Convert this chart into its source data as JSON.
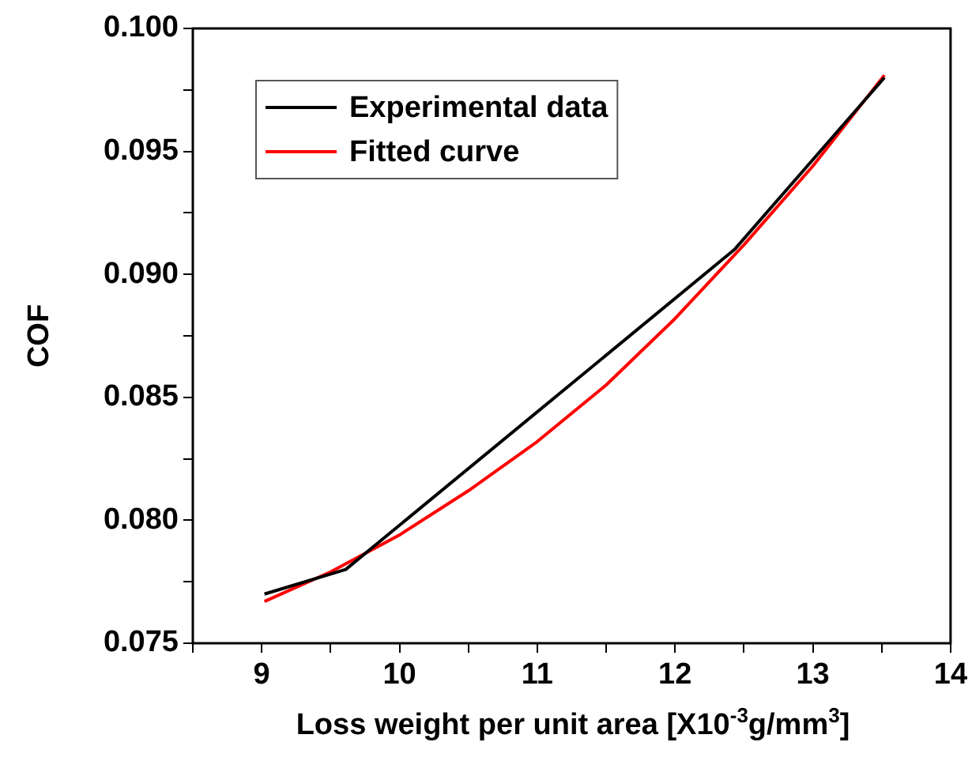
{
  "chart_data": {
    "type": "line",
    "xlabel": "Loss weight per unit area [X10$^{-3}$g/mm$^{3}$]",
    "ylabel": "COF",
    "xlim": [
      8.5,
      14
    ],
    "xticks": [
      {
        "value": 8.5,
        "label": null
      },
      9,
      {
        "value": 9.5,
        "label": null
      },
      10,
      {
        "value": 10.5,
        "label": null
      },
      11,
      {
        "value": 11.5,
        "label": null
      },
      12,
      {
        "value": 12.5,
        "label": null
      },
      13,
      {
        "value": 13.5,
        "label": null
      },
      14
    ],
    "ylim": [
      0.075,
      0.1
    ],
    "yticks": [
      {
        "value": 0.075,
        "label": "0.075"
      },
      {
        "value": 0.0775,
        "label": null
      },
      {
        "value": 0.08,
        "label": "0.080"
      },
      {
        "value": 0.0825,
        "label": null
      },
      {
        "value": 0.085,
        "label": "0.085"
      },
      {
        "value": 0.0875,
        "label": null
      },
      {
        "value": 0.09,
        "label": "0.090"
      },
      {
        "value": 0.0925,
        "label": null
      },
      {
        "value": 0.095,
        "label": "0.095"
      },
      {
        "value": 0.0975,
        "label": null
      },
      {
        "value": 0.1,
        "label": "0.100"
      }
    ],
    "legend": "top left",
    "grid": false,
    "marker": "none",
    "line_style": "solid",
    "series": [
      {
        "name": "Experimental data",
        "color": "#000000",
        "x": [
          9.02,
          9.61,
          12.43,
          13.52
        ],
        "values": [
          0.077,
          0.078,
          0.091,
          0.098
        ]
      },
      {
        "name": "Fitted curve",
        "color": "#ff0000",
        "x": [
          9.02,
          9.5,
          10,
          10.5,
          11,
          11.5,
          12,
          12.5,
          13,
          13.52
        ],
        "values": [
          0.0767,
          0.0779,
          0.0794,
          0.0812,
          0.0832,
          0.0855,
          0.0882,
          0.0912,
          0.0944,
          0.0981
        ]
      }
    ]
  }
}
